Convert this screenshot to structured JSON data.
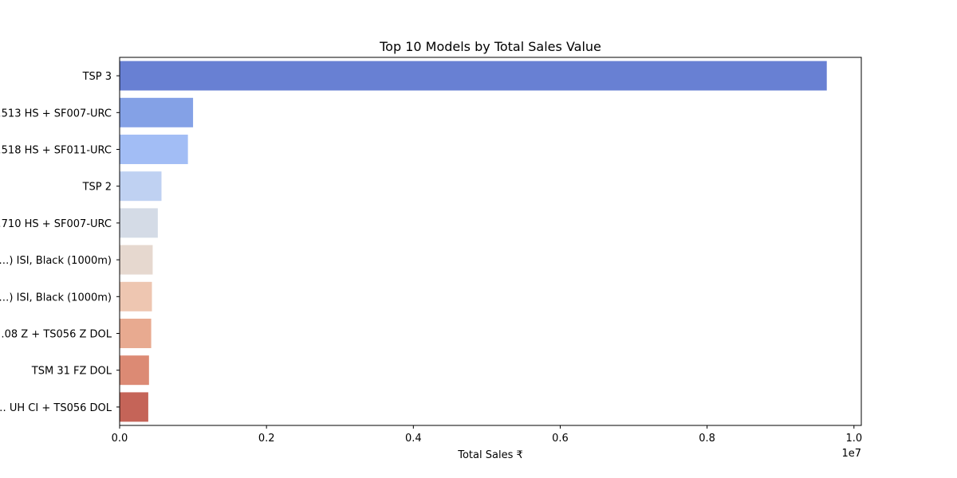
{
  "chart_data": {
    "type": "bar",
    "orientation": "horizontal",
    "title": "Top 10 Models by Total Sales Value",
    "xlabel": "Total Sales ₹",
    "ylabel": "",
    "x_offset_label": "1e7",
    "xlim": [
      0,
      10100000
    ],
    "xticks": [
      0,
      2000000,
      4000000,
      6000000,
      8000000,
      10000000
    ],
    "xtick_labels": [
      "0.0",
      "0.2",
      "0.4",
      "0.6",
      "0.8",
      "1.0"
    ],
    "grid": false,
    "categories": [
      "TSP 3",
      "…513 HS + SF007-URC",
      "…518 HS + SF011-URC",
      "TSP 2",
      "…710 HS + SF007-URC",
      "…) ISI, Black (1000m)",
      "…) ISI, Black (1000m)",
      "…08 Z + TS056 Z DOL",
      "TSM 31 FZ DOL",
      "… UH CI + TS056 DOL"
    ],
    "values": [
      9630000,
      1000000,
      930000,
      570000,
      520000,
      450000,
      440000,
      430000,
      400000,
      390000
    ],
    "colors": [
      "#6880d3",
      "#84a1e6",
      "#a2bdf5",
      "#bfd1f2",
      "#d4dbe6",
      "#e6d8cf",
      "#eec6b1",
      "#e8aa90",
      "#dc8a74",
      "#c56458"
    ]
  }
}
